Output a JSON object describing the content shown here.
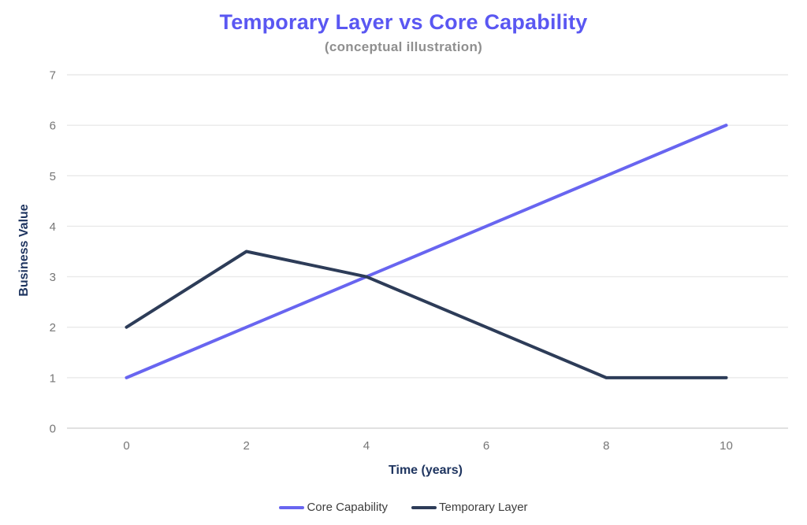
{
  "chart_data": {
    "type": "line",
    "title": "Temporary Layer vs Core Capability",
    "subtitle": "(conceptual illustration)",
    "xlabel": "Time (years)",
    "ylabel": "Business Value",
    "x": [
      0,
      2,
      4,
      6,
      8,
      10
    ],
    "series": [
      {
        "name": "Core Capability",
        "color": "#6865f0",
        "values": [
          1,
          2,
          3,
          4,
          5,
          6
        ]
      },
      {
        "name": "Temporary Layer",
        "color": "#2d3c58",
        "values": [
          2,
          3.5,
          3,
          2,
          1,
          1
        ]
      }
    ],
    "x_ticks": [
      0,
      2,
      4,
      6,
      8,
      10
    ],
    "y_ticks": [
      0,
      1,
      2,
      3,
      4,
      5,
      6,
      7
    ],
    "xlim": [
      0,
      10
    ],
    "ylim": [
      0,
      7
    ],
    "grid": "horizontal",
    "legend_position": "bottom",
    "style": {
      "title_color": "#5a57f2",
      "subtitle_color": "#8f8f8f",
      "axis_title_color": "#1f3560",
      "tick_label_color": "#767676",
      "gridline_color": "#e9e9e9",
      "baseline_color": "#d7d7d7",
      "legend_text_color": "#3d3d3d",
      "background": "#ffffff"
    }
  }
}
